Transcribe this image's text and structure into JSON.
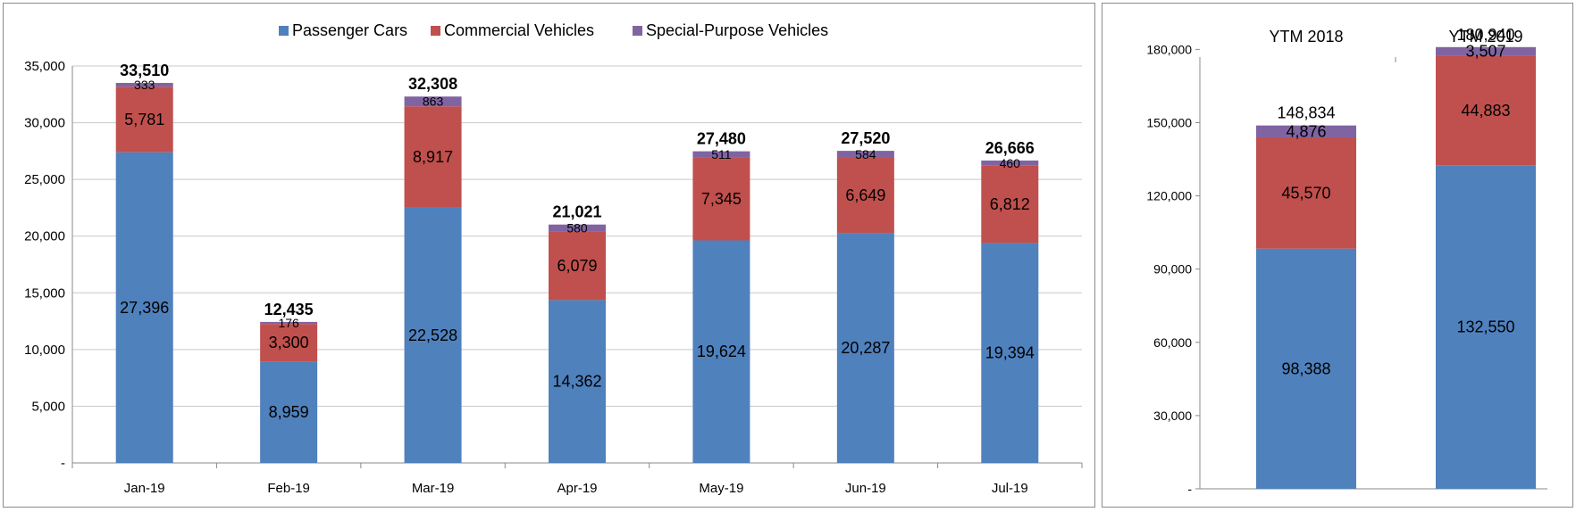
{
  "chart_data": [
    {
      "type": "bar",
      "stacked": true,
      "title": "",
      "xlabel": "",
      "ylabel": "",
      "categories": [
        "Jan-19",
        "Feb-19",
        "Mar-19",
        "Apr-19",
        "May-19",
        "Jun-19",
        "Jul-19"
      ],
      "ylim": [
        0,
        35000
      ],
      "yticks": [
        "-",
        "5,000",
        "10,000",
        "15,000",
        "20,000",
        "25,000",
        "30,000",
        "35,000"
      ],
      "grid": true,
      "legend_position": "top",
      "series": [
        {
          "name": "Passenger Cars",
          "color": "#4f81bd",
          "values": [
            27396,
            8959,
            22528,
            14362,
            19624,
            20287,
            19394
          ],
          "labels": [
            "27,396",
            "8,959",
            "22,528",
            "14,362",
            "19,624",
            "20,287",
            "19,394"
          ]
        },
        {
          "name": "Commercial Vehicles",
          "color": "#c0504d",
          "values": [
            5781,
            3300,
            8917,
            6079,
            7345,
            6649,
            6812
          ],
          "labels": [
            "5,781",
            "3,300",
            "8,917",
            "6,079",
            "7,345",
            "6,649",
            "6,812"
          ]
        },
        {
          "name": "Special-Purpose Vehicles",
          "color": "#8064a2",
          "values": [
            333,
            176,
            863,
            580,
            511,
            584,
            460
          ],
          "labels": [
            "333",
            "176",
            "863",
            "580",
            "511",
            "584",
            "460"
          ]
        }
      ],
      "totals": [
        "33,510",
        "12,435",
        "32,308",
        "21,021",
        "27,480",
        "27,520",
        "26,666"
      ]
    },
    {
      "type": "bar",
      "stacked": true,
      "title": "",
      "xlabel": "",
      "ylabel": "",
      "categories": [
        "YTM 2018",
        "YTM 2019"
      ],
      "category_axis_position": "top",
      "ylim": [
        0,
        190000
      ],
      "yticks": [
        "-",
        "30,000",
        "60,000",
        "90,000",
        "120,000",
        "150,000",
        "180,000"
      ],
      "grid": false,
      "series": [
        {
          "name": "Passenger Cars",
          "color": "#4f81bd",
          "values": [
            98388,
            132550
          ],
          "labels": [
            "98,388",
            "132,550"
          ]
        },
        {
          "name": "Commercial Vehicles",
          "color": "#c0504d",
          "values": [
            45570,
            44883
          ],
          "labels": [
            "45,570",
            "44,883"
          ]
        },
        {
          "name": "Special-Purpose Vehicles",
          "color": "#8064a2",
          "values": [
            4876,
            3507
          ],
          "labels": [
            "4,876",
            "3,507"
          ]
        }
      ],
      "totals": [
        "148,834",
        "180,940"
      ]
    }
  ]
}
